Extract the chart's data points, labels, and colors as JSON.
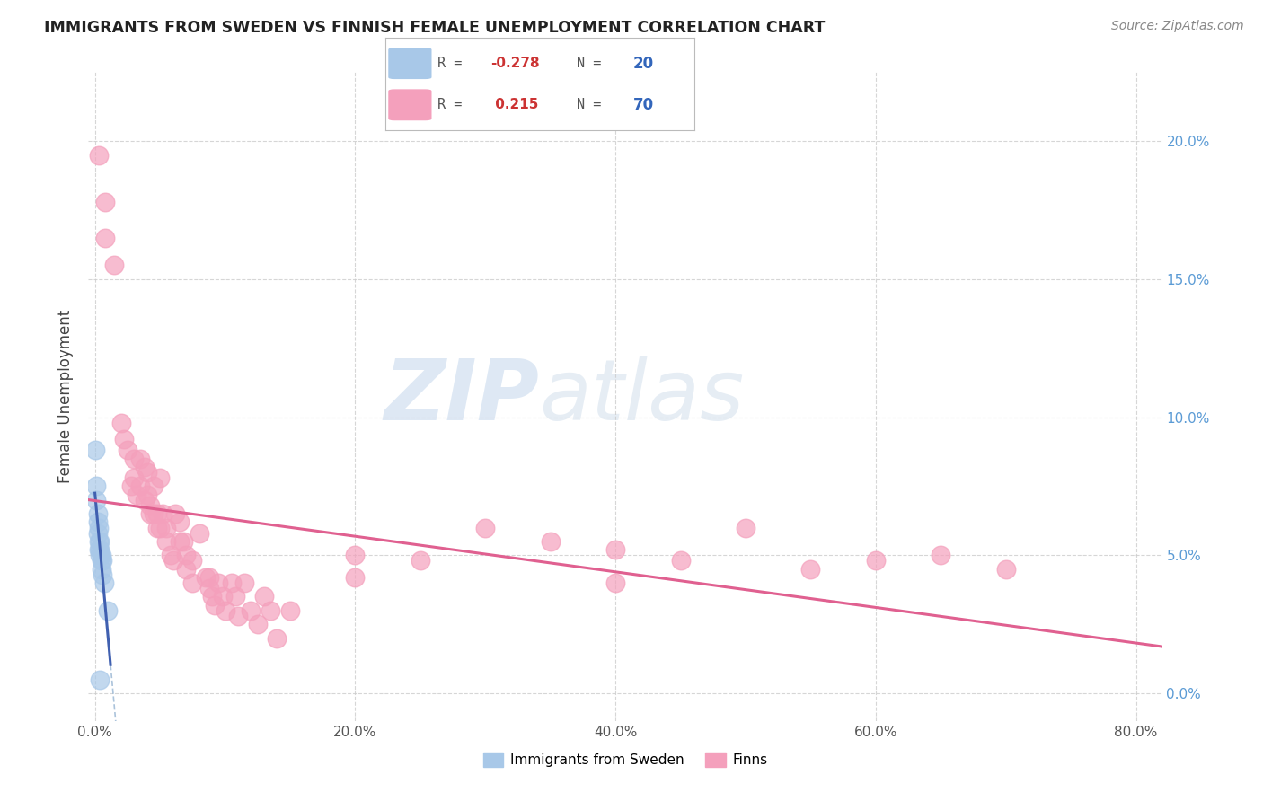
{
  "title": "IMMIGRANTS FROM SWEDEN VS FINNISH FEMALE UNEMPLOYMENT CORRELATION CHART",
  "source": "Source: ZipAtlas.com",
  "ylabel_label": "Female Unemployment",
  "legend_label1": "Immigrants from Sweden",
  "legend_label2": "Finns",
  "r1": -0.278,
  "n1": 20,
  "r2": 0.215,
  "n2": 70,
  "color_blue": "#A8C8E8",
  "color_pink": "#F4A0BC",
  "line_blue": "#4060B0",
  "line_pink": "#E06090",
  "background": "#FFFFFF",
  "blue_points": [
    [
      0.0,
      0.088
    ],
    [
      0.001,
      0.075
    ],
    [
      0.001,
      0.07
    ],
    [
      0.002,
      0.065
    ],
    [
      0.002,
      0.062
    ],
    [
      0.002,
      0.058
    ],
    [
      0.003,
      0.06
    ],
    [
      0.003,
      0.055
    ],
    [
      0.003,
      0.052
    ],
    [
      0.004,
      0.055
    ],
    [
      0.004,
      0.052
    ],
    [
      0.004,
      0.05
    ],
    [
      0.005,
      0.05
    ],
    [
      0.005,
      0.048
    ],
    [
      0.005,
      0.045
    ],
    [
      0.006,
      0.048
    ],
    [
      0.006,
      0.043
    ],
    [
      0.007,
      0.04
    ],
    [
      0.01,
      0.03
    ],
    [
      0.004,
      0.005
    ]
  ],
  "pink_points": [
    [
      0.003,
      0.195
    ],
    [
      0.008,
      0.178
    ],
    [
      0.008,
      0.165
    ],
    [
      0.015,
      0.155
    ],
    [
      0.02,
      0.098
    ],
    [
      0.022,
      0.092
    ],
    [
      0.025,
      0.088
    ],
    [
      0.028,
      0.075
    ],
    [
      0.03,
      0.085
    ],
    [
      0.03,
      0.078
    ],
    [
      0.032,
      0.072
    ],
    [
      0.035,
      0.085
    ],
    [
      0.035,
      0.075
    ],
    [
      0.038,
      0.082
    ],
    [
      0.038,
      0.07
    ],
    [
      0.04,
      0.08
    ],
    [
      0.04,
      0.072
    ],
    [
      0.042,
      0.068
    ],
    [
      0.042,
      0.065
    ],
    [
      0.045,
      0.075
    ],
    [
      0.045,
      0.065
    ],
    [
      0.048,
      0.065
    ],
    [
      0.048,
      0.06
    ],
    [
      0.05,
      0.078
    ],
    [
      0.05,
      0.06
    ],
    [
      0.052,
      0.065
    ],
    [
      0.055,
      0.06
    ],
    [
      0.055,
      0.055
    ],
    [
      0.058,
      0.05
    ],
    [
      0.06,
      0.048
    ],
    [
      0.062,
      0.065
    ],
    [
      0.065,
      0.062
    ],
    [
      0.065,
      0.055
    ],
    [
      0.068,
      0.055
    ],
    [
      0.07,
      0.05
    ],
    [
      0.07,
      0.045
    ],
    [
      0.075,
      0.048
    ],
    [
      0.075,
      0.04
    ],
    [
      0.08,
      0.058
    ],
    [
      0.085,
      0.042
    ],
    [
      0.088,
      0.042
    ],
    [
      0.088,
      0.038
    ],
    [
      0.09,
      0.035
    ],
    [
      0.092,
      0.032
    ],
    [
      0.095,
      0.04
    ],
    [
      0.098,
      0.035
    ],
    [
      0.1,
      0.03
    ],
    [
      0.105,
      0.04
    ],
    [
      0.108,
      0.035
    ],
    [
      0.11,
      0.028
    ],
    [
      0.115,
      0.04
    ],
    [
      0.12,
      0.03
    ],
    [
      0.125,
      0.025
    ],
    [
      0.13,
      0.035
    ],
    [
      0.135,
      0.03
    ],
    [
      0.14,
      0.02
    ],
    [
      0.15,
      0.03
    ],
    [
      0.2,
      0.05
    ],
    [
      0.2,
      0.042
    ],
    [
      0.25,
      0.048
    ],
    [
      0.3,
      0.06
    ],
    [
      0.35,
      0.055
    ],
    [
      0.4,
      0.052
    ],
    [
      0.4,
      0.04
    ],
    [
      0.45,
      0.048
    ],
    [
      0.5,
      0.06
    ],
    [
      0.55,
      0.045
    ],
    [
      0.6,
      0.048
    ],
    [
      0.65,
      0.05
    ],
    [
      0.7,
      0.045
    ]
  ],
  "xlim": [
    -0.005,
    0.82
  ],
  "ylim": [
    -0.01,
    0.225
  ],
  "xticks": [
    0.0,
    0.2,
    0.4,
    0.6,
    0.8
  ],
  "yticks": [
    0.0,
    0.05,
    0.1,
    0.15,
    0.2
  ]
}
